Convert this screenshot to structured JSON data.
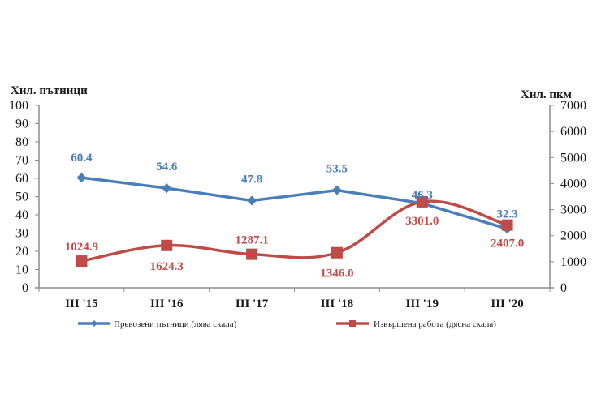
{
  "chart_data": {
    "type": "line",
    "categories": [
      "III '15",
      "III '16",
      "III '17",
      "III '18",
      "III '19",
      "III '20"
    ],
    "y_left": {
      "label": "Хил. пътници",
      "min": 0,
      "max": 100,
      "step": 10,
      "ticks": [
        "0",
        "10",
        "20",
        "30",
        "40",
        "50",
        "60",
        "70",
        "80",
        "90",
        "100"
      ]
    },
    "y_right": {
      "label": "Хил. пкм",
      "min": 0,
      "max": 7000,
      "step": 1000,
      "ticks": [
        "0",
        "1000",
        "2000",
        "3000",
        "4000",
        "5000",
        "6000",
        "7000"
      ]
    },
    "grid": false,
    "legend_position": "bottom",
    "series": [
      {
        "name": "Превозени пътници (лява скала)",
        "axis": "left",
        "color": "#4a7ebb",
        "marker": "diamond",
        "values": [
          60.4,
          54.6,
          47.8,
          53.5,
          46.3,
          32.3
        ],
        "labels": [
          "60.4",
          "54.6",
          "47.8",
          "53.5",
          "46.3",
          "32.3"
        ]
      },
      {
        "name": "Извършена работа (дясна скала)",
        "axis": "right",
        "color": "#be4b48",
        "marker": "square",
        "values": [
          1024.9,
          1624.3,
          1287.1,
          1346.0,
          3301.0,
          2407.0
        ],
        "labels": [
          "1024.9",
          "1624.3",
          "1287.1",
          "1346.0",
          "3301.0",
          "2407.0"
        ]
      }
    ]
  }
}
